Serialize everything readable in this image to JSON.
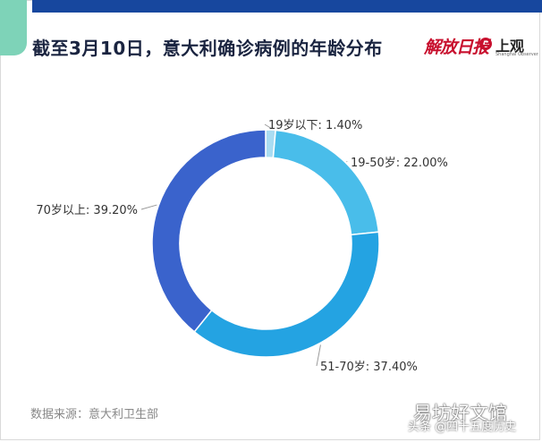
{
  "title": "截至3月10日，意大利确诊病例的年龄分布",
  "logos": {
    "jiefang": "解放日报",
    "shangguan": "上观",
    "shangguan_sub": "Shanghai Observer"
  },
  "source": "数据来源：意大利卫生部",
  "watermark": {
    "main": "易坊好文馆",
    "sub": "头条 @四十五度历史"
  },
  "colors": {
    "topbar": "#17479e",
    "accent": "#7ed3b8",
    "slices": [
      "#a9dcf2",
      "#49bdea",
      "#24a3e2",
      "#3a63cc"
    ]
  },
  "chart_data": {
    "type": "pie",
    "style": "donut",
    "title": "截至3月10日，意大利确诊病例的年龄分布",
    "categories": [
      "19岁以下",
      "19-50岁",
      "51-70岁",
      "70岁以上"
    ],
    "values": [
      1.4,
      22.0,
      37.4,
      39.2
    ],
    "labels": [
      "19岁以下: 1.40%",
      "19-50岁: 22.00%",
      "51-70岁: 37.40%",
      "70岁以上: 39.20%"
    ],
    "unit": "%",
    "start": "top",
    "direction": "clockwise"
  }
}
